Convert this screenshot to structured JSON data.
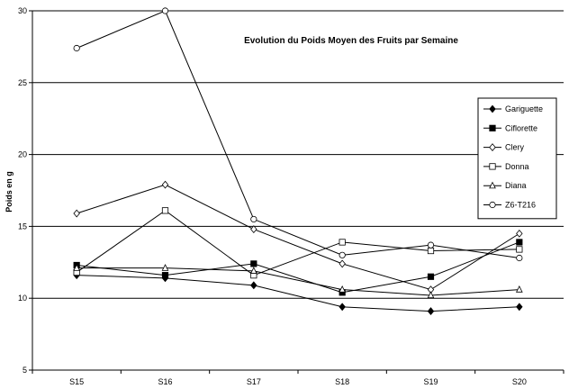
{
  "chart_data": {
    "type": "line",
    "title": "Evolution du Poids Moyen des Fruits par Semaine",
    "xlabel": "",
    "ylabel": "Poids en g",
    "categories": [
      "S15",
      "S16",
      "S17",
      "S18",
      "S19",
      "S20"
    ],
    "ylim": [
      5,
      30
    ],
    "yticks": [
      5,
      10,
      15,
      20,
      25,
      30
    ],
    "grid": true,
    "legend_position": "right",
    "series": [
      {
        "name": "Gariguette",
        "marker": "diamond-filled",
        "values": [
          11.6,
          11.4,
          10.9,
          9.4,
          9.1,
          9.4
        ]
      },
      {
        "name": "Ciflorette",
        "marker": "square-filled",
        "values": [
          12.3,
          11.6,
          12.4,
          10.4,
          11.5,
          13.9
        ]
      },
      {
        "name": "Clery",
        "marker": "diamond-open",
        "values": [
          15.9,
          17.9,
          14.8,
          12.4,
          10.6,
          14.5
        ]
      },
      {
        "name": "Donna",
        "marker": "square-open",
        "values": [
          11.8,
          16.1,
          11.6,
          13.9,
          13.3,
          13.4
        ]
      },
      {
        "name": "Diana",
        "marker": "triangle-open",
        "values": [
          12.1,
          12.1,
          11.9,
          10.6,
          10.2,
          10.6
        ]
      },
      {
        "name": "Z6-T216",
        "marker": "circle-open",
        "values": [
          27.4,
          30.0,
          15.5,
          13.0,
          13.7,
          12.8
        ]
      }
    ]
  }
}
